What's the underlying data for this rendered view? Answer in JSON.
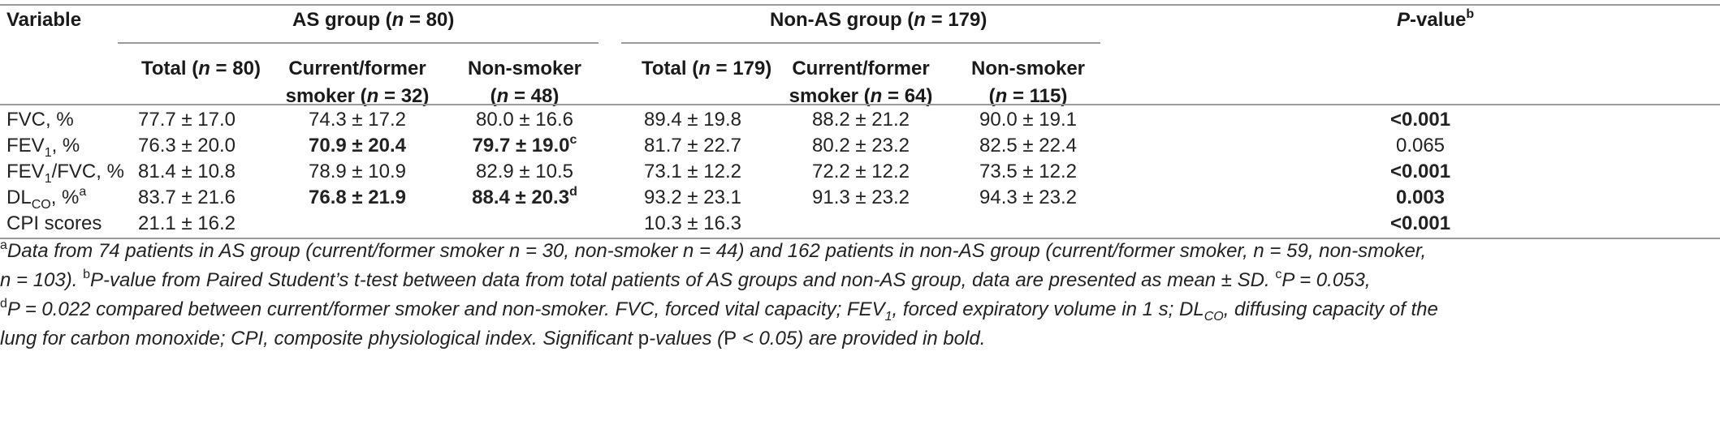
{
  "header": {
    "variable": "Variable",
    "as_group": "AS group (",
    "as_group_n": "n",
    "as_group_tail": " = 80)",
    "nonas_group": "Non-AS group (",
    "nonas_group_n": "n",
    "nonas_group_tail": " = 179)",
    "pvalue_p": "P",
    "pvalue_tail": "-value",
    "pvalue_sup": "b",
    "sub": {
      "as_total": [
        "Total (",
        "n",
        " = 80)"
      ],
      "as_smoker_l1": "Current/former",
      "as_smoker_l2": [
        "smoker (",
        "n",
        " = 32)"
      ],
      "as_non_l1": "Non-smoker",
      "as_non_l2": [
        "(",
        "n",
        " = 48)"
      ],
      "nonas_total": [
        "Total (",
        "n",
        " = 179)"
      ],
      "nonas_smoker_l1": "Current/former",
      "nonas_smoker_l2": [
        "smoker (",
        "n",
        " = 64)"
      ],
      "nonas_non_l1": "Non-smoker",
      "nonas_non_l2": [
        "(",
        "n",
        " = 115)"
      ]
    }
  },
  "rows": [
    {
      "label": "FVC, %",
      "as_total": "77.7 ± 17.0",
      "as_smoker": "74.3 ± 17.2",
      "as_non": "80.0 ± 16.6",
      "nonas_total": "89.4 ± 19.8",
      "nonas_smoker": "88.2 ± 21.2",
      "nonas_non": "90.0 ± 19.1",
      "p": "<0.001"
    },
    {
      "label_pre": "FEV",
      "label_sub": "1",
      "label_post": ", %",
      "as_total": "76.3 ± 20.0",
      "as_smoker": "70.9 ± 20.4",
      "as_non": "79.7 ± 19.0",
      "as_non_sup": "c",
      "nonas_total": "81.7 ± 22.7",
      "nonas_smoker": "80.2 ± 23.2",
      "nonas_non": "82.5 ± 22.4",
      "p": "0.065"
    },
    {
      "label_pre": "FEV",
      "label_sub": "1",
      "label_post": "/FVC, %",
      "as_total": "81.4 ± 10.8",
      "as_smoker": "78.9 ± 10.9",
      "as_non": "82.9 ± 10.5",
      "nonas_total": "73.1 ± 12.2",
      "nonas_smoker": "72.2 ± 12.2",
      "nonas_non": "73.5 ± 12.2",
      "p": "<0.001"
    },
    {
      "label_pre": "DL",
      "label_sub": "CO",
      "label_post": ", %",
      "label_sup": "a",
      "as_total": "83.7 ± 21.6",
      "as_smoker": "76.8 ± 21.9",
      "as_non": "88.4 ± 20.3",
      "as_non_sup": "d",
      "nonas_total": "93.2 ± 23.1",
      "nonas_smoker": "91.3 ± 23.2",
      "nonas_non": "94.3 ± 23.2",
      "p": "0.003"
    },
    {
      "label": "CPI scores",
      "as_total": "21.1 ± 16.2",
      "nonas_total": "10.3 ± 16.3",
      "p": "<0.001"
    }
  ],
  "footnotes": {
    "line1_sup": "a",
    "line1": "Data from 74 patients in AS group (current/former smoker n = 30, non-smoker n = 44) and 162 patients in non-AS group (current/former smoker, n = 59, non-smoker,",
    "line2_a": "n = 103). ",
    "line2_sup": "b",
    "line2_b": "P-value from Paired Student’s t-test between data from total patients of AS groups and non-AS group, data are presented as mean ± SD. ",
    "line2_sup2": "c",
    "line2_c": "P = 0.053,",
    "line3_sup": "d",
    "line3_a": "P = 0.022 compared between current/former smoker and non-smoker. FVC, forced vital capacity; FEV",
    "line3_sub1": "1",
    "line3_b": ", forced expiratory volume in 1 s; DL",
    "line3_sub2": "CO",
    "line3_c": ", diffusing capacity of the",
    "line4_a": "lung for carbon monoxide; CPI, composite physiological index. Significant ",
    "line4_p": "p",
    "line4_b": "-values (",
    "line4_P": "P",
    "line4_c": " < 0.05) are provided in bold."
  }
}
